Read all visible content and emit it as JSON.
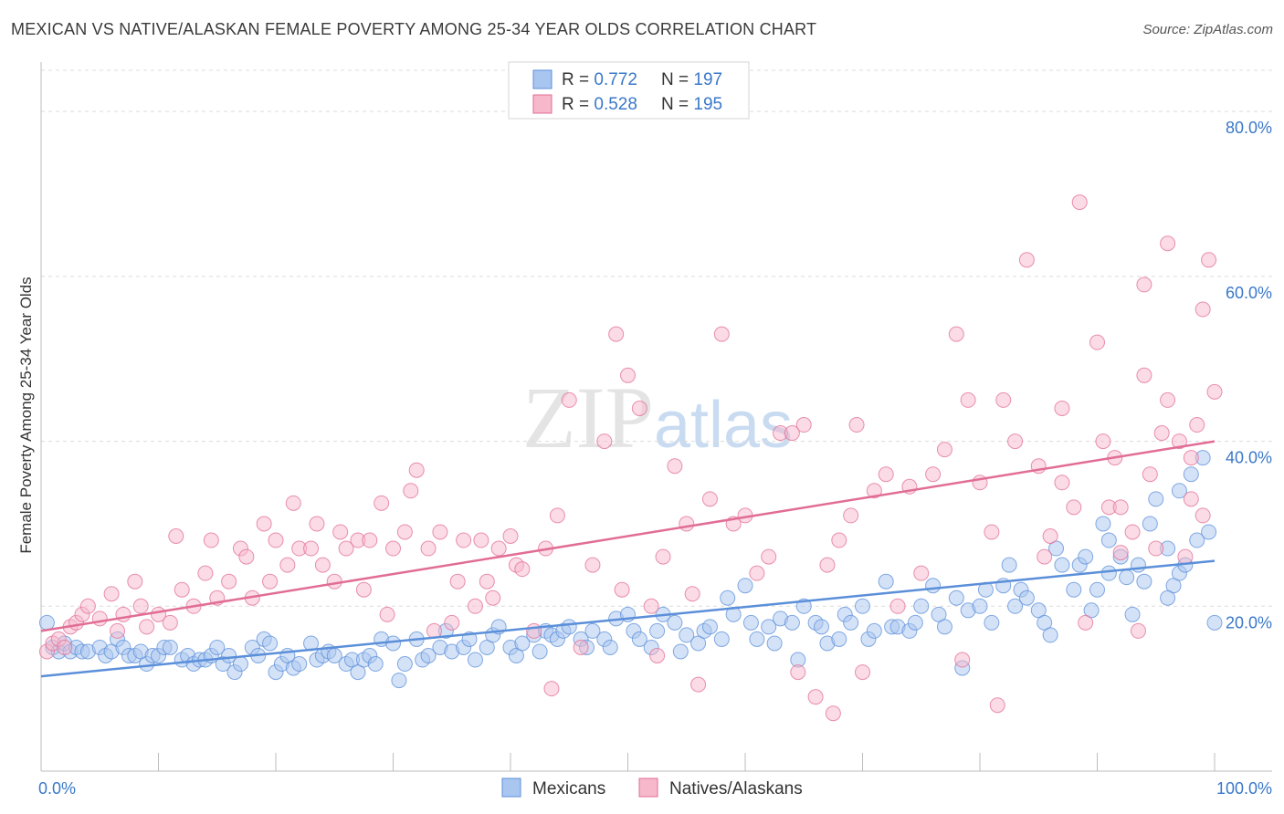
{
  "title": "MEXICAN VS NATIVE/ALASKAN FEMALE POVERTY AMONG 25-34 YEAR OLDS CORRELATION CHART",
  "source": "Source: ZipAtlas.com",
  "watermark": "ZIPatlas",
  "chart_data": {
    "type": "scatter",
    "ylabel": "Female Poverty Among 25-34 Year Olds",
    "xlim": [
      0,
      100
    ],
    "ylim": [
      0,
      85
    ],
    "x_tick_labels": [
      "0.0%",
      "100.0%"
    ],
    "y_ticks": [
      20,
      40,
      60,
      80
    ],
    "y_tick_labels": [
      "20.0%",
      "40.0%",
      "60.0%",
      "80.0%"
    ],
    "grid": true,
    "legend_position": "top-center",
    "stats": [
      {
        "r_label": "R = ",
        "r": "0.772",
        "n_label": "N = ",
        "n": "197"
      },
      {
        "r_label": "R = ",
        "r": "0.528",
        "n_label": "N = ",
        "n": "195"
      }
    ],
    "series": [
      {
        "name": "Mexicans",
        "color": "#5b8fd9",
        "fill": "#a9c6f0",
        "trend": [
          [
            0,
            11.5
          ],
          [
            100,
            25.5
          ]
        ],
        "points": [
          [
            0.5,
            18
          ],
          [
            1,
            15
          ],
          [
            1.5,
            14.5
          ],
          [
            2,
            15.5
          ],
          [
            2.5,
            14.5
          ],
          [
            3,
            15
          ],
          [
            3.5,
            14.5
          ],
          [
            4,
            14.5
          ],
          [
            5,
            15
          ],
          [
            5.5,
            14
          ],
          [
            6,
            14.5
          ],
          [
            6.5,
            16
          ],
          [
            7,
            15
          ],
          [
            7.5,
            14
          ],
          [
            8,
            14
          ],
          [
            8.5,
            14.5
          ],
          [
            9,
            13
          ],
          [
            9.5,
            14
          ],
          [
            10,
            14
          ],
          [
            10.5,
            15
          ],
          [
            11,
            15
          ],
          [
            12,
            13.5
          ],
          [
            12.5,
            14
          ],
          [
            13,
            13
          ],
          [
            13.5,
            13.5
          ],
          [
            14,
            13.5
          ],
          [
            14.5,
            14
          ],
          [
            15,
            15
          ],
          [
            15.5,
            13
          ],
          [
            16,
            14
          ],
          [
            16.5,
            12
          ],
          [
            17,
            13
          ],
          [
            18,
            15
          ],
          [
            18.5,
            14
          ],
          [
            19,
            16
          ],
          [
            19.5,
            15.5
          ],
          [
            20,
            12
          ],
          [
            20.5,
            13
          ],
          [
            21,
            14
          ],
          [
            21.5,
            12.5
          ],
          [
            22,
            13
          ],
          [
            23,
            15.5
          ],
          [
            23.5,
            13.5
          ],
          [
            24,
            14
          ],
          [
            24.5,
            14.5
          ],
          [
            25,
            14
          ],
          [
            26,
            13
          ],
          [
            26.5,
            13.5
          ],
          [
            27,
            12
          ],
          [
            27.5,
            13.5
          ],
          [
            28,
            14
          ],
          [
            28.5,
            13
          ],
          [
            29,
            16
          ],
          [
            30,
            15.5
          ],
          [
            30.5,
            11
          ],
          [
            31,
            13
          ],
          [
            32,
            16
          ],
          [
            32.5,
            13.5
          ],
          [
            33,
            14
          ],
          [
            34,
            15
          ],
          [
            34.5,
            17
          ],
          [
            35,
            14.5
          ],
          [
            36,
            15
          ],
          [
            36.5,
            16
          ],
          [
            37,
            13.5
          ],
          [
            38,
            15
          ],
          [
            38.5,
            16.5
          ],
          [
            39,
            17.5
          ],
          [
            40,
            15
          ],
          [
            40.5,
            14
          ],
          [
            41,
            15.5
          ],
          [
            42,
            16.5
          ],
          [
            42.5,
            14.5
          ],
          [
            43,
            17
          ],
          [
            43.5,
            16.5
          ],
          [
            44,
            16
          ],
          [
            44.5,
            17
          ],
          [
            45,
            17.5
          ],
          [
            46,
            16
          ],
          [
            46.5,
            15
          ],
          [
            47,
            17
          ],
          [
            48,
            16
          ],
          [
            48.5,
            15
          ],
          [
            49,
            18.5
          ],
          [
            50,
            19
          ],
          [
            50.5,
            17
          ],
          [
            51,
            16
          ],
          [
            52,
            15
          ],
          [
            52.5,
            17
          ],
          [
            53,
            19
          ],
          [
            54,
            18
          ],
          [
            54.5,
            14.5
          ],
          [
            55,
            16.5
          ],
          [
            56,
            15.5
          ],
          [
            56.5,
            17
          ],
          [
            57,
            17.5
          ],
          [
            58,
            16
          ],
          [
            58.5,
            21
          ],
          [
            59,
            19
          ],
          [
            60,
            22.5
          ],
          [
            60.5,
            18
          ],
          [
            61,
            16
          ],
          [
            62,
            17.5
          ],
          [
            62.5,
            15.5
          ],
          [
            63,
            18.5
          ],
          [
            64,
            18
          ],
          [
            64.5,
            13.5
          ],
          [
            65,
            20
          ],
          [
            66,
            18
          ],
          [
            66.5,
            17.5
          ],
          [
            67,
            15.5
          ],
          [
            68,
            16
          ],
          [
            68.5,
            19
          ],
          [
            69,
            18
          ],
          [
            70,
            20
          ],
          [
            70.5,
            16
          ],
          [
            71,
            17
          ],
          [
            72,
            23
          ],
          [
            72.5,
            17.5
          ],
          [
            73,
            17.5
          ],
          [
            74,
            17
          ],
          [
            74.5,
            18
          ],
          [
            75,
            20
          ],
          [
            76,
            22.5
          ],
          [
            76.5,
            19
          ],
          [
            77,
            17.5
          ],
          [
            78,
            21
          ],
          [
            78.5,
            12.5
          ],
          [
            79,
            19.5
          ],
          [
            80,
            20
          ],
          [
            80.5,
            22
          ],
          [
            81,
            18
          ],
          [
            82,
            22.5
          ],
          [
            82.5,
            25
          ],
          [
            83,
            20
          ],
          [
            83.5,
            22
          ],
          [
            84,
            21
          ],
          [
            85,
            19.5
          ],
          [
            85.5,
            18
          ],
          [
            86,
            16.5
          ],
          [
            86.5,
            27
          ],
          [
            87,
            25
          ],
          [
            88,
            22
          ],
          [
            88.5,
            25
          ],
          [
            89,
            26
          ],
          [
            89.5,
            19.5
          ],
          [
            90,
            22
          ],
          [
            90.5,
            30
          ],
          [
            91,
            24
          ],
          [
            92,
            26
          ],
          [
            92.5,
            23.5
          ],
          [
            93,
            19
          ],
          [
            93.5,
            25
          ],
          [
            94,
            23
          ],
          [
            94.5,
            30
          ],
          [
            95,
            33
          ],
          [
            96,
            27
          ],
          [
            96.5,
            22.5
          ],
          [
            97,
            24
          ],
          [
            97.5,
            25
          ],
          [
            98,
            36
          ],
          [
            98.5,
            28
          ],
          [
            99,
            38
          ],
          [
            99.5,
            29
          ],
          [
            100,
            18
          ],
          [
            97,
            34
          ],
          [
            91,
            28
          ],
          [
            96,
            21
          ]
        ]
      },
      {
        "name": "Natives/Alaskans",
        "color": "#e16d96",
        "fill": "#f7b8cc",
        "trend": [
          [
            0,
            17
          ],
          [
            100,
            40
          ]
        ],
        "points": [
          [
            0.5,
            14.5
          ],
          [
            1,
            15.5
          ],
          [
            1.5,
            16
          ],
          [
            2,
            15
          ],
          [
            2.5,
            17.5
          ],
          [
            3,
            18
          ],
          [
            3.5,
            19
          ],
          [
            4,
            20
          ],
          [
            5,
            18.5
          ],
          [
            6,
            21.5
          ],
          [
            6.5,
            17
          ],
          [
            7,
            19
          ],
          [
            8,
            23
          ],
          [
            8.5,
            20
          ],
          [
            9,
            17.5
          ],
          [
            10,
            19
          ],
          [
            11,
            18
          ],
          [
            11.5,
            28.5
          ],
          [
            12,
            22
          ],
          [
            13,
            20
          ],
          [
            14,
            24
          ],
          [
            14.5,
            28
          ],
          [
            15,
            21
          ],
          [
            16,
            23
          ],
          [
            17,
            27
          ],
          [
            17.5,
            26
          ],
          [
            18,
            21
          ],
          [
            19,
            30
          ],
          [
            19.5,
            23
          ],
          [
            20,
            28
          ],
          [
            21,
            25
          ],
          [
            21.5,
            32.5
          ],
          [
            22,
            27
          ],
          [
            23,
            27
          ],
          [
            23.5,
            30
          ],
          [
            24,
            25
          ],
          [
            25,
            23
          ],
          [
            25.5,
            29
          ],
          [
            26,
            27
          ],
          [
            27,
            28
          ],
          [
            27.5,
            22
          ],
          [
            28,
            28
          ],
          [
            29,
            32.5
          ],
          [
            29.5,
            19
          ],
          [
            30,
            27
          ],
          [
            31,
            29
          ],
          [
            31.5,
            34
          ],
          [
            32,
            36.5
          ],
          [
            33,
            27
          ],
          [
            33.5,
            17
          ],
          [
            34,
            29
          ],
          [
            35,
            18
          ],
          [
            35.5,
            23
          ],
          [
            36,
            28
          ],
          [
            37,
            20
          ],
          [
            37.5,
            28
          ],
          [
            38,
            23
          ],
          [
            38.5,
            21
          ],
          [
            39,
            27
          ],
          [
            40,
            28.5
          ],
          [
            40.5,
            25
          ],
          [
            41,
            24.5
          ],
          [
            42,
            17
          ],
          [
            43,
            27
          ],
          [
            43.5,
            10
          ],
          [
            44,
            31
          ],
          [
            45,
            45
          ],
          [
            46,
            15
          ],
          [
            47,
            25
          ],
          [
            48,
            40
          ],
          [
            49,
            53
          ],
          [
            49.5,
            22
          ],
          [
            50,
            48
          ],
          [
            51,
            44
          ],
          [
            52,
            20
          ],
          [
            52.5,
            14
          ],
          [
            53,
            26
          ],
          [
            54,
            37
          ],
          [
            55,
            30
          ],
          [
            55.5,
            21.5
          ],
          [
            56,
            10.5
          ],
          [
            57,
            33
          ],
          [
            58,
            53
          ],
          [
            59,
            30
          ],
          [
            60,
            31
          ],
          [
            61,
            24
          ],
          [
            62,
            26
          ],
          [
            63,
            41
          ],
          [
            64,
            41
          ],
          [
            64.5,
            12
          ],
          [
            65,
            42
          ],
          [
            66,
            9
          ],
          [
            67,
            25
          ],
          [
            67.5,
            7
          ],
          [
            68,
            28
          ],
          [
            69,
            31
          ],
          [
            69.5,
            42
          ],
          [
            70,
            12
          ],
          [
            71,
            34
          ],
          [
            72,
            36
          ],
          [
            73,
            20
          ],
          [
            74,
            34.5
          ],
          [
            75,
            24
          ],
          [
            76,
            36
          ],
          [
            77,
            39
          ],
          [
            78,
            53
          ],
          [
            78.5,
            13.5
          ],
          [
            79,
            45
          ],
          [
            80,
            35
          ],
          [
            81,
            29
          ],
          [
            81.5,
            8
          ],
          [
            82,
            45
          ],
          [
            83,
            40
          ],
          [
            84,
            62
          ],
          [
            85,
            37
          ],
          [
            85.5,
            26
          ],
          [
            86,
            28.5
          ],
          [
            87,
            35
          ],
          [
            88,
            32
          ],
          [
            88.5,
            69
          ],
          [
            89,
            18
          ],
          [
            90,
            52
          ],
          [
            90.5,
            40
          ],
          [
            91,
            32
          ],
          [
            91.5,
            38
          ],
          [
            92,
            26.5
          ],
          [
            93,
            29
          ],
          [
            93.5,
            17
          ],
          [
            94,
            59
          ],
          [
            94.5,
            36
          ],
          [
            95,
            27
          ],
          [
            95.5,
            41
          ],
          [
            96,
            45
          ],
          [
            97,
            40
          ],
          [
            98,
            33
          ],
          [
            98.5,
            42
          ],
          [
            99,
            31
          ],
          [
            99.5,
            62
          ],
          [
            100,
            46
          ],
          [
            96,
            64
          ],
          [
            98,
            38
          ],
          [
            92,
            32
          ],
          [
            94,
            48
          ],
          [
            87,
            44
          ],
          [
            97.5,
            26
          ],
          [
            99,
            56
          ]
        ]
      }
    ]
  }
}
